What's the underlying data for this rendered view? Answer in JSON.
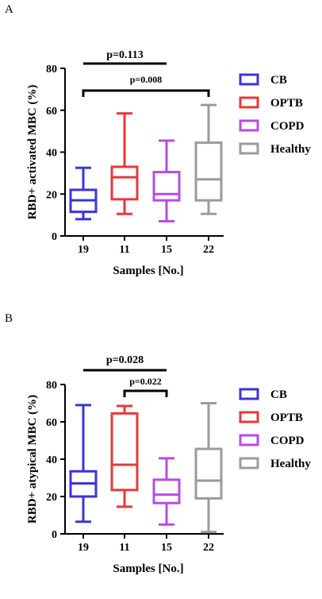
{
  "chart_data": [
    {
      "panel": "A",
      "type": "box",
      "ylabel": "RBD+ activated MBC (%)",
      "xlabel": "Samples [No.]",
      "ylim": [
        0,
        80
      ],
      "yticks": [
        0,
        20,
        40,
        60,
        80
      ],
      "categories": [
        "19",
        "11",
        "15",
        "22"
      ],
      "series": [
        {
          "name": "CB",
          "min": 8,
          "q1": 11.5,
          "median": 17,
          "q3": 22,
          "max": 32.5
        },
        {
          "name": "OPTB",
          "min": 10.5,
          "q1": 17.5,
          "median": 28,
          "q3": 33,
          "max": 58.5
        },
        {
          "name": "COPD",
          "min": 7,
          "q1": 17,
          "median": 20,
          "q3": 30.5,
          "max": 45.5
        },
        {
          "name": "Healthy",
          "min": 10.5,
          "q1": 17,
          "median": 27,
          "q3": 44.5,
          "max": 62.5
        }
      ],
      "annotations": [
        {
          "label": "p=0.113",
          "from": 0,
          "to": 2
        },
        {
          "label": "p=0.008",
          "from": 0,
          "to": 3
        }
      ]
    },
    {
      "panel": "B",
      "type": "box",
      "ylabel": "RBD+ atypical MBC (%)",
      "xlabel": "Samples [No.]",
      "ylim": [
        0,
        80
      ],
      "yticks": [
        0,
        20,
        40,
        60,
        80
      ],
      "categories": [
        "19",
        "11",
        "15",
        "22"
      ],
      "series": [
        {
          "name": "CB",
          "min": 6.5,
          "q1": 20,
          "median": 27,
          "q3": 33.5,
          "max": 69
        },
        {
          "name": "OPTB",
          "min": 14.5,
          "q1": 23.5,
          "median": 37,
          "q3": 64.5,
          "max": 68.5
        },
        {
          "name": "COPD",
          "min": 5,
          "q1": 16.5,
          "median": 21,
          "q3": 29,
          "max": 40.5
        },
        {
          "name": "Healthy",
          "min": 1,
          "q1": 19,
          "median": 28.5,
          "q3": 45.5,
          "max": 70
        }
      ],
      "annotations": [
        {
          "label": "p=0.028",
          "from": 0,
          "to": 2
        },
        {
          "label": "p=0.022",
          "from": 1,
          "to": 2
        }
      ]
    }
  ],
  "legend": [
    "CB",
    "OPTB",
    "COPD",
    "Healthy"
  ],
  "colors": {
    "CB": "#3a35d9",
    "OPTB": "#e53a3a",
    "COPD": "#b94be6",
    "Healthy": "#9b9b9b"
  }
}
